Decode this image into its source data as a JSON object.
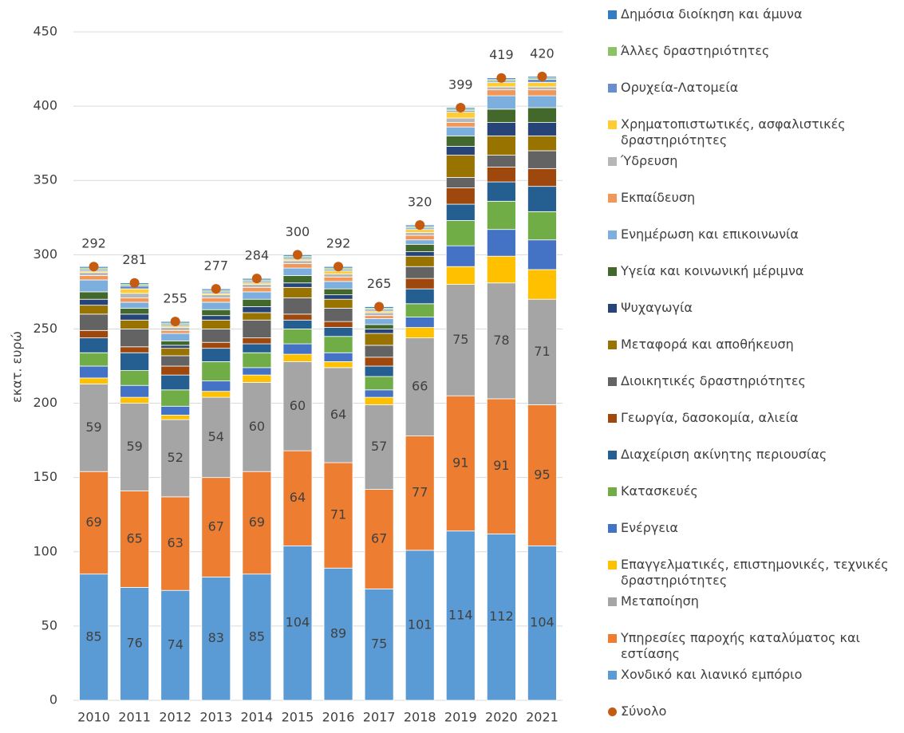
{
  "chart_data": {
    "type": "bar",
    "stacked": true,
    "y_label": "εκατ. ευρώ",
    "categories": [
      "2010",
      "2011",
      "2012",
      "2013",
      "2014",
      "2015",
      "2016",
      "2017",
      "2018",
      "2019",
      "2020",
      "2021"
    ],
    "ylim": [
      0,
      450
    ],
    "yticks": [
      0,
      50,
      100,
      150,
      200,
      250,
      300,
      350,
      400,
      450
    ],
    "grid": true,
    "series": [
      {
        "name": "Χονδικό και λιανικό εμπόριο",
        "color": "#5b9bd5",
        "values": [
          85,
          76,
          74,
          83,
          85,
          104,
          89,
          75,
          101,
          114,
          112,
          104
        ],
        "labels": true
      },
      {
        "name": "Υπηρεσίες παροχής καταλύματος και εστίασης",
        "color": "#ed7d31",
        "values": [
          69,
          65,
          63,
          67,
          69,
          64,
          71,
          67,
          77,
          91,
          91,
          95
        ],
        "labels": true
      },
      {
        "name": "Μεταποίηση",
        "color": "#a5a5a5",
        "values": [
          59,
          59,
          52,
          54,
          60,
          60,
          64,
          57,
          66,
          75,
          78,
          71
        ],
        "labels": true
      },
      {
        "name": "Επαγγελματικές, επιστημονικές, τεχνικές δραστηριότητες",
        "color": "#ffc000",
        "values": [
          4,
          4,
          3,
          4,
          5,
          5,
          4,
          5,
          7,
          12,
          18,
          20
        ]
      },
      {
        "name": "Ενέργεια",
        "color": "#4472c4",
        "values": [
          8,
          8,
          6,
          7,
          5,
          7,
          6,
          5,
          7,
          14,
          18,
          20
        ]
      },
      {
        "name": "Κατασκευές",
        "color": "#70ad47",
        "values": [
          9,
          10,
          11,
          13,
          10,
          10,
          11,
          9,
          9,
          17,
          19,
          19
        ]
      },
      {
        "name": "Διαχείριση ακίνητης περιουσίας",
        "color": "#255e91",
        "values": [
          10,
          12,
          10,
          9,
          6,
          6,
          6,
          7,
          10,
          11,
          13,
          17
        ]
      },
      {
        "name": "Γεωργία, δασοκομία, αλιεία",
        "color": "#9e480e",
        "values": [
          5,
          4,
          6,
          4,
          4,
          4,
          4,
          6,
          7,
          11,
          10,
          12
        ]
      },
      {
        "name": "Διοικητικές δραστηριότητες",
        "color": "#636363",
        "values": [
          11,
          12,
          7,
          9,
          12,
          11,
          9,
          8,
          8,
          7,
          8,
          12
        ]
      },
      {
        "name": "Μεταφορά και αποθήκευση",
        "color": "#997300",
        "values": [
          6,
          6,
          5,
          6,
          5,
          7,
          6,
          8,
          7,
          15,
          13,
          10
        ]
      },
      {
        "name": "Ψυχαγωγία",
        "color": "#264478",
        "values": [
          4,
          4,
          2,
          3,
          4,
          3,
          3,
          3,
          3,
          6,
          9,
          9
        ]
      },
      {
        "name": "Υγεία και κοινωνική μέριμνα",
        "color": "#43682b",
        "values": [
          5,
          4,
          3,
          4,
          5,
          5,
          4,
          3,
          5,
          7,
          9,
          10
        ]
      },
      {
        "name": "Ενημέρωση και επικοινωνία",
        "color": "#7cafdd",
        "values": [
          8,
          4,
          5,
          5,
          5,
          5,
          5,
          4,
          3,
          6,
          9,
          8
        ]
      },
      {
        "name": "Εκπαίδευση",
        "color": "#f1975a",
        "values": [
          3,
          3,
          2,
          3,
          3,
          3,
          3,
          2,
          3,
          3,
          4,
          4
        ]
      },
      {
        "name": "Ύδρευση",
        "color": "#b7b7b7",
        "values": [
          2,
          3,
          2,
          2,
          2,
          2,
          2,
          2,
          2,
          3,
          2,
          2
        ]
      },
      {
        "name": "Χρηματοπιστωτικές, ασφαλιστικές δραστηριότητες",
        "color": "#ffcd33",
        "values": [
          1,
          3,
          1,
          1,
          1,
          1,
          2,
          1,
          2,
          4,
          3,
          3
        ]
      },
      {
        "name": "Ορυχεία-Λατομεία",
        "color": "#698ed0",
        "values": [
          1,
          2,
          1,
          1,
          1,
          1,
          1,
          1,
          1,
          1,
          1,
          2
        ]
      },
      {
        "name": "Άλλες δραστηριότητες",
        "color": "#8cc168",
        "values": [
          1,
          1,
          1,
          1,
          1,
          1,
          1,
          1,
          1,
          1,
          1,
          1
        ]
      },
      {
        "name": "Δημόσια διοίκηση και άμυνα",
        "color": "#327dc2",
        "values": [
          1,
          1,
          1,
          1,
          1,
          1,
          1,
          1,
          1,
          1,
          1,
          1
        ]
      }
    ],
    "total": {
      "name": "Σύνολο",
      "color": "#c55a11",
      "values": [
        292,
        281,
        255,
        277,
        284,
        300,
        292,
        265,
        320,
        399,
        419,
        420
      ]
    }
  }
}
